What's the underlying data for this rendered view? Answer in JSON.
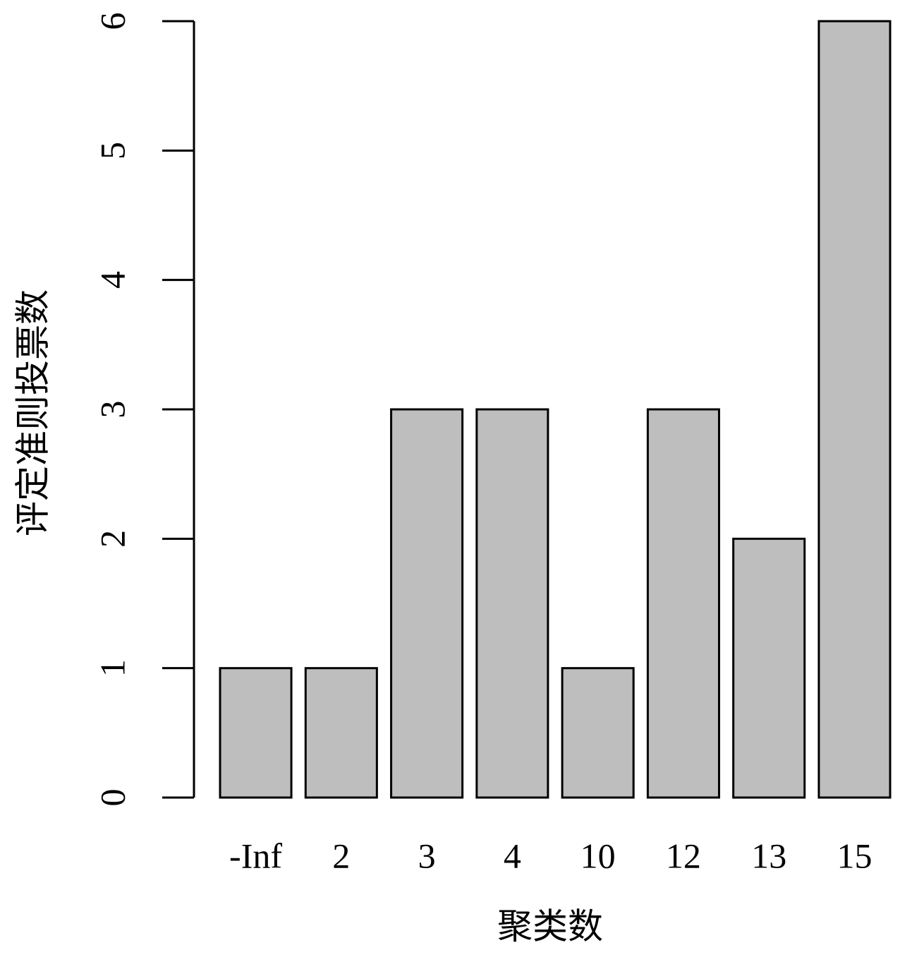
{
  "chart_data": {
    "type": "bar",
    "x_label": "聚类数",
    "y_label": "评定准则投票数",
    "categories": [
      "-Inf",
      "2",
      "3",
      "4",
      "10",
      "12",
      "13",
      "15"
    ],
    "values": [
      1,
      1,
      3,
      3,
      1,
      3,
      2,
      6
    ],
    "color": "#bebebe",
    "ylim": [
      0,
      6
    ],
    "yticks": [
      0,
      1,
      2,
      3,
      4,
      5,
      6
    ],
    "grid": false
  }
}
